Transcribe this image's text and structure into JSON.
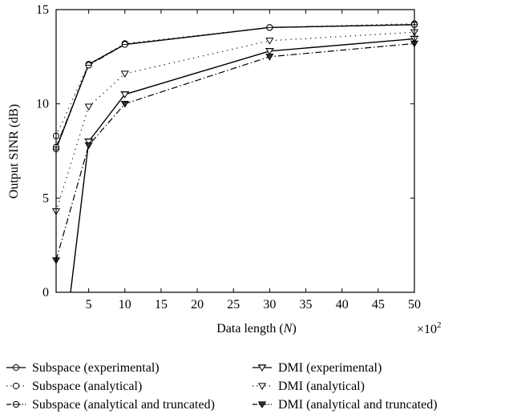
{
  "chart_data": {
    "type": "line",
    "xlabel_prefix": "Data length (",
    "xlabel_var": "N",
    "xlabel_suffix": ")",
    "x_multiplier": "×10",
    "x_multiplier_exp": "2",
    "ylabel": "Output SINR (dB)",
    "xlim": [
      0.5,
      50
    ],
    "ylim": [
      0,
      15
    ],
    "x_ticks": [
      5,
      10,
      15,
      20,
      25,
      30,
      35,
      40,
      45,
      50
    ],
    "y_ticks": [
      0,
      5,
      10,
      15
    ],
    "legend_position": "bottom",
    "series": [
      {
        "name": "Subspace (experimental)",
        "line": "solid",
        "marker": "circle-dot",
        "x": [
          0.5,
          5,
          10,
          30,
          50
        ],
        "y": [
          7.6,
          12.1,
          13.15,
          14.05,
          14.2
        ]
      },
      {
        "name": "Subspace (analytical)",
        "line": "dotted",
        "marker": "circle",
        "x": [
          0.5,
          5,
          10,
          30,
          50
        ],
        "y": [
          8.3,
          12.1,
          13.2,
          14.05,
          14.25
        ]
      },
      {
        "name": "Subspace (analytical and truncated)",
        "line": "dashdot",
        "marker": "circle-dot",
        "x": [
          0.5,
          5,
          10,
          30,
          50
        ],
        "y": [
          7.7,
          12.05,
          13.15,
          14.05,
          14.2
        ]
      },
      {
        "name": "DMI (experimental)",
        "line": "solid",
        "marker": "triangle-line",
        "x": [
          2.5,
          5,
          10,
          30,
          50
        ],
        "y": [
          0,
          8.0,
          10.5,
          12.8,
          13.45
        ]
      },
      {
        "name": "DMI (analytical)",
        "line": "dotted",
        "marker": "triangle-open",
        "x": [
          0.5,
          5,
          10,
          30,
          50
        ],
        "y": [
          4.3,
          9.85,
          11.6,
          13.35,
          13.8
        ]
      },
      {
        "name": "DMI (analytical and truncated)",
        "line": "dashdot",
        "marker": "triangle-filled",
        "x": [
          0.5,
          5,
          10,
          30,
          50
        ],
        "y": [
          1.7,
          7.8,
          10.0,
          12.5,
          13.2
        ]
      }
    ]
  }
}
